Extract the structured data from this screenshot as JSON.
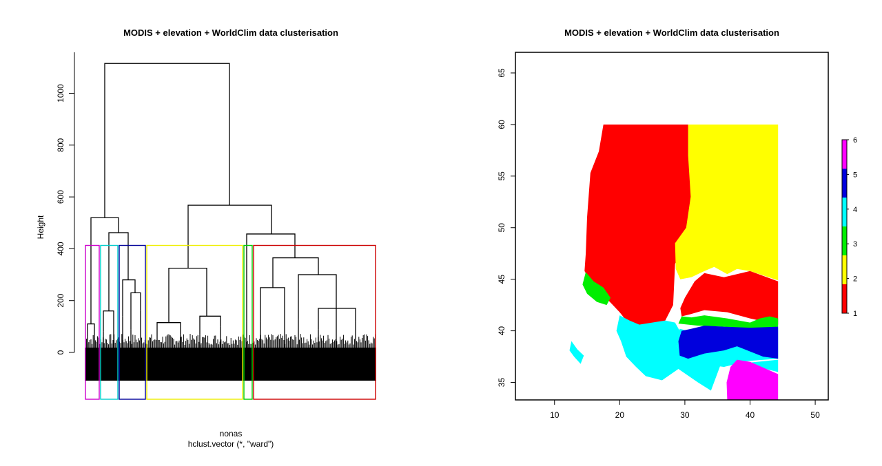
{
  "chart_data": [
    {
      "type": "dendrogram",
      "title": "MODIS + elevation + WorldClim data clusterisation",
      "ylabel": "Height",
      "xlabel": "nonas",
      "sub": "hclust.vector (*, \"ward\")",
      "ylim": [
        0,
        1130
      ],
      "yticks": [
        0,
        200,
        400,
        600,
        800,
        1000
      ],
      "cut_height": 413,
      "merges": [
        {
          "name": "root",
          "height": 1115
        },
        {
          "name": "left-group",
          "height": 520
        },
        {
          "name": "right-group",
          "height": 568
        },
        {
          "name": "left-inner",
          "height": 462
        },
        {
          "name": "right-inner",
          "height": 457
        },
        {
          "name": "red-inner",
          "height": 365
        },
        {
          "name": "yellow-top",
          "height": 325
        }
      ],
      "clusters": [
        {
          "rank": 1,
          "color": "#cc00cc"
        },
        {
          "rank": 2,
          "color": "#00cccc"
        },
        {
          "rank": 3,
          "color": "#000099"
        },
        {
          "rank": 4,
          "color": "#eeee00"
        },
        {
          "rank": 5,
          "color": "#00cc00"
        },
        {
          "rank": 6,
          "color": "#cc0000"
        }
      ]
    },
    {
      "type": "heatmap",
      "title": "MODIS + elevation + WorldClim data clusterisation",
      "xlim": [
        4,
        52
      ],
      "ylim": [
        33.3,
        67.0
      ],
      "xticks": [
        10,
        20,
        30,
        40,
        50
      ],
      "yticks": [
        35,
        40,
        45,
        50,
        55,
        60,
        65
      ],
      "legend": {
        "position": "right",
        "breaks": [
          1,
          2,
          3,
          4,
          5,
          6
        ],
        "colors": [
          "#ff0000",
          "#ffff00",
          "#00ee00",
          "#00ffff",
          "#0000dd",
          "#ff00ff"
        ]
      },
      "regions": [
        {
          "cluster": 1,
          "color": "#ff0000",
          "desc": "red",
          "poly": [
            [
              15.5,
              55.3
            ],
            [
              16.8,
              57.4
            ],
            [
              17.5,
              60.0
            ],
            [
              30.5,
              60.0
            ],
            [
              31.0,
              57.0
            ],
            [
              31.5,
              52.0
            ],
            [
              30.5,
              49.0
            ],
            [
              28.5,
              46.5
            ],
            [
              28.2,
              42.5
            ],
            [
              27.0,
              41.0
            ],
            [
              25.5,
              40.6
            ],
            [
              24.0,
              40.3
            ],
            [
              22.0,
              40.0
            ],
            [
              21.0,
              41.0
            ],
            [
              20.0,
              41.8
            ],
            [
              18.5,
              42.8
            ],
            [
              17.0,
              43.8
            ],
            [
              15.5,
              44.8
            ],
            [
              14.6,
              45.8
            ],
            [
              14.8,
              47.5
            ],
            [
              15.0,
              51.0
            ]
          ]
        },
        {
          "cluster": 1,
          "color": "#ff0000",
          "desc": "red",
          "poly": [
            [
              31.5,
              44.8
            ],
            [
              33.0,
              45.6
            ],
            [
              36.0,
              45.2
            ],
            [
              40.0,
              45.8
            ],
            [
              44.3,
              44.8
            ],
            [
              44.3,
              40.6
            ],
            [
              40.0,
              41.2
            ],
            [
              36.5,
              41.8
            ],
            [
              33.0,
              42.0
            ],
            [
              30.8,
              41.6
            ],
            [
              29.5,
              41.4
            ],
            [
              29.3,
              42.2
            ],
            [
              30.0,
              43.2
            ]
          ]
        },
        {
          "cluster": 2,
          "color": "#ffff00",
          "desc": "yellow",
          "poly": [
            [
              30.5,
              60.0
            ],
            [
              44.3,
              60.0
            ],
            [
              44.3,
              44.9
            ],
            [
              40.0,
              45.8
            ],
            [
              38.0,
              46.0
            ],
            [
              36.5,
              45.5
            ],
            [
              34.5,
              46.2
            ],
            [
              33.0,
              45.8
            ],
            [
              31.0,
              45.2
            ],
            [
              29.3,
              45.0
            ],
            [
              28.6,
              46.0
            ],
            [
              28.5,
              48.5
            ],
            [
              30.2,
              50.0
            ],
            [
              30.9,
              53.0
            ],
            [
              30.5,
              57.0
            ]
          ]
        },
        {
          "cluster": 3,
          "color": "#00ee00",
          "desc": "green",
          "poly": [
            [
              14.8,
              45.7
            ],
            [
              16.0,
              44.8
            ],
            [
              17.5,
              44.2
            ],
            [
              18.6,
              43.2
            ],
            [
              18.0,
              42.5
            ],
            [
              16.5,
              42.8
            ],
            [
              15.0,
              43.6
            ],
            [
              14.3,
              44.5
            ]
          ]
        },
        {
          "cluster": 3,
          "color": "#00ee00",
          "desc": "green",
          "poly": [
            [
              29.5,
              41.4
            ],
            [
              31.0,
              41.3
            ],
            [
              33.0,
              41.5
            ],
            [
              36.5,
              41.2
            ],
            [
              40.0,
              40.8
            ],
            [
              41.5,
              41.2
            ],
            [
              43.0,
              41.4
            ],
            [
              44.3,
              41.2
            ],
            [
              44.3,
              40.4
            ],
            [
              40.0,
              40.1
            ],
            [
              36.0,
              40.4
            ],
            [
              32.0,
              40.5
            ],
            [
              29.0,
              40.7
            ]
          ]
        },
        {
          "cluster": 4,
          "color": "#00ffff",
          "desc": "cyan",
          "poly": [
            [
              20.0,
              41.5
            ],
            [
              21.5,
              41.0
            ],
            [
              23.0,
              40.6
            ],
            [
              25.0,
              40.8
            ],
            [
              27.0,
              41.0
            ],
            [
              28.5,
              40.8
            ],
            [
              29.2,
              40.0
            ],
            [
              28.8,
              38.5
            ],
            [
              29.5,
              37.5
            ],
            [
              32.0,
              37.0
            ],
            [
              36.0,
              36.5
            ],
            [
              38.0,
              36.8
            ],
            [
              44.3,
              37.2
            ],
            [
              44.3,
              36.0
            ],
            [
              40.0,
              36.7
            ],
            [
              36.0,
              37.6
            ],
            [
              34.0,
              34.2
            ],
            [
              32.0,
              35.0
            ],
            [
              29.0,
              36.3
            ],
            [
              26.5,
              35.2
            ],
            [
              24.0,
              35.6
            ],
            [
              22.5,
              36.5
            ],
            [
              21.0,
              37.5
            ],
            [
              20.2,
              39.0
            ],
            [
              19.5,
              40.0
            ]
          ]
        },
        {
          "cluster": 4,
          "color": "#00ffff",
          "desc": "cyan",
          "poly": [
            [
              12.6,
              39.0
            ],
            [
              13.5,
              38.2
            ],
            [
              14.5,
              37.6
            ],
            [
              14.0,
              36.8
            ],
            [
              13.0,
              37.5
            ],
            [
              12.3,
              38.1
            ]
          ]
        },
        {
          "cluster": 4,
          "color": "#00ffff",
          "desc": "cyan",
          "poly": [
            [
              29.2,
              40.2
            ],
            [
              31.0,
              39.9
            ],
            [
              33.0,
              40.3
            ],
            [
              36.0,
              40.3
            ],
            [
              40.0,
              40.0
            ],
            [
              44.3,
              40.3
            ],
            [
              44.3,
              37.3
            ],
            [
              38.0,
              37.0
            ],
            [
              36.0,
              36.5
            ],
            [
              32.0,
              36.8
            ],
            [
              29.5,
              37.4
            ],
            [
              28.8,
              38.5
            ]
          ]
        },
        {
          "cluster": 5,
          "color": "#0000dd",
          "desc": "blue",
          "poly": [
            [
              29.5,
              40.0
            ],
            [
              31.0,
              40.2
            ],
            [
              33.0,
              40.5
            ],
            [
              36.0,
              40.4
            ],
            [
              40.0,
              40.3
            ],
            [
              44.3,
              40.4
            ],
            [
              44.3,
              37.3
            ],
            [
              42.0,
              37.5
            ],
            [
              40.0,
              38.0
            ],
            [
              38.0,
              38.5
            ],
            [
              36.0,
              38.1
            ],
            [
              33.0,
              37.8
            ],
            [
              30.5,
              37.3
            ],
            [
              29.2,
              37.6
            ],
            [
              29.0,
              39.0
            ]
          ]
        },
        {
          "cluster": 6,
          "color": "#ff00ff",
          "desc": "magenta",
          "poly": [
            [
              36.5,
              33.3
            ],
            [
              44.3,
              33.3
            ],
            [
              44.3,
              35.8
            ],
            [
              40.0,
              37.0
            ],
            [
              38.0,
              37.2
            ],
            [
              37.0,
              36.5
            ],
            [
              36.4,
              35.0
            ]
          ]
        }
      ]
    }
  ]
}
